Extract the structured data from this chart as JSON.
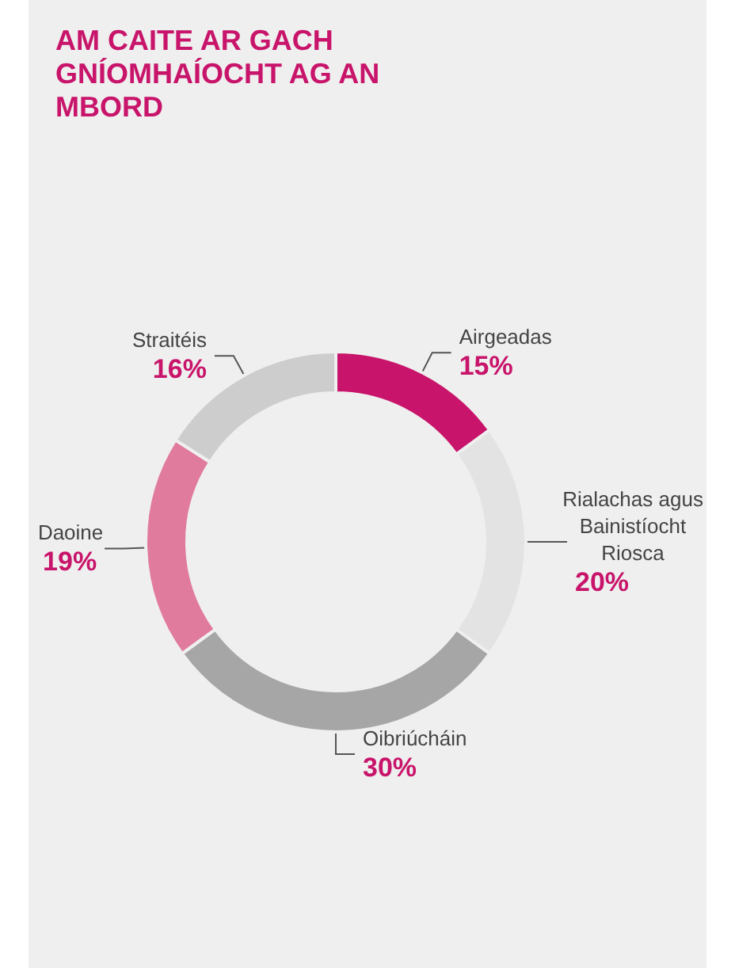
{
  "chart_data": {
    "type": "donut",
    "title": "AM CAITE AR GACH GNÍOMHAÍOCHT AG AN MBORD",
    "categories": [
      "Airgeadas",
      "Rialachas agus Bainistíocht Riosca",
      "Oibriúcháin",
      "Daoine",
      "Straitéis"
    ],
    "values": [
      15,
      20,
      30,
      19,
      16
    ],
    "value_labels": [
      "15%",
      "20%",
      "30%",
      "19%",
      "16%"
    ],
    "colors": [
      "#c8146a",
      "#e3e3e3",
      "#a6a6a6",
      "#e07b9e",
      "#cdcdcd"
    ],
    "legend": false
  }
}
